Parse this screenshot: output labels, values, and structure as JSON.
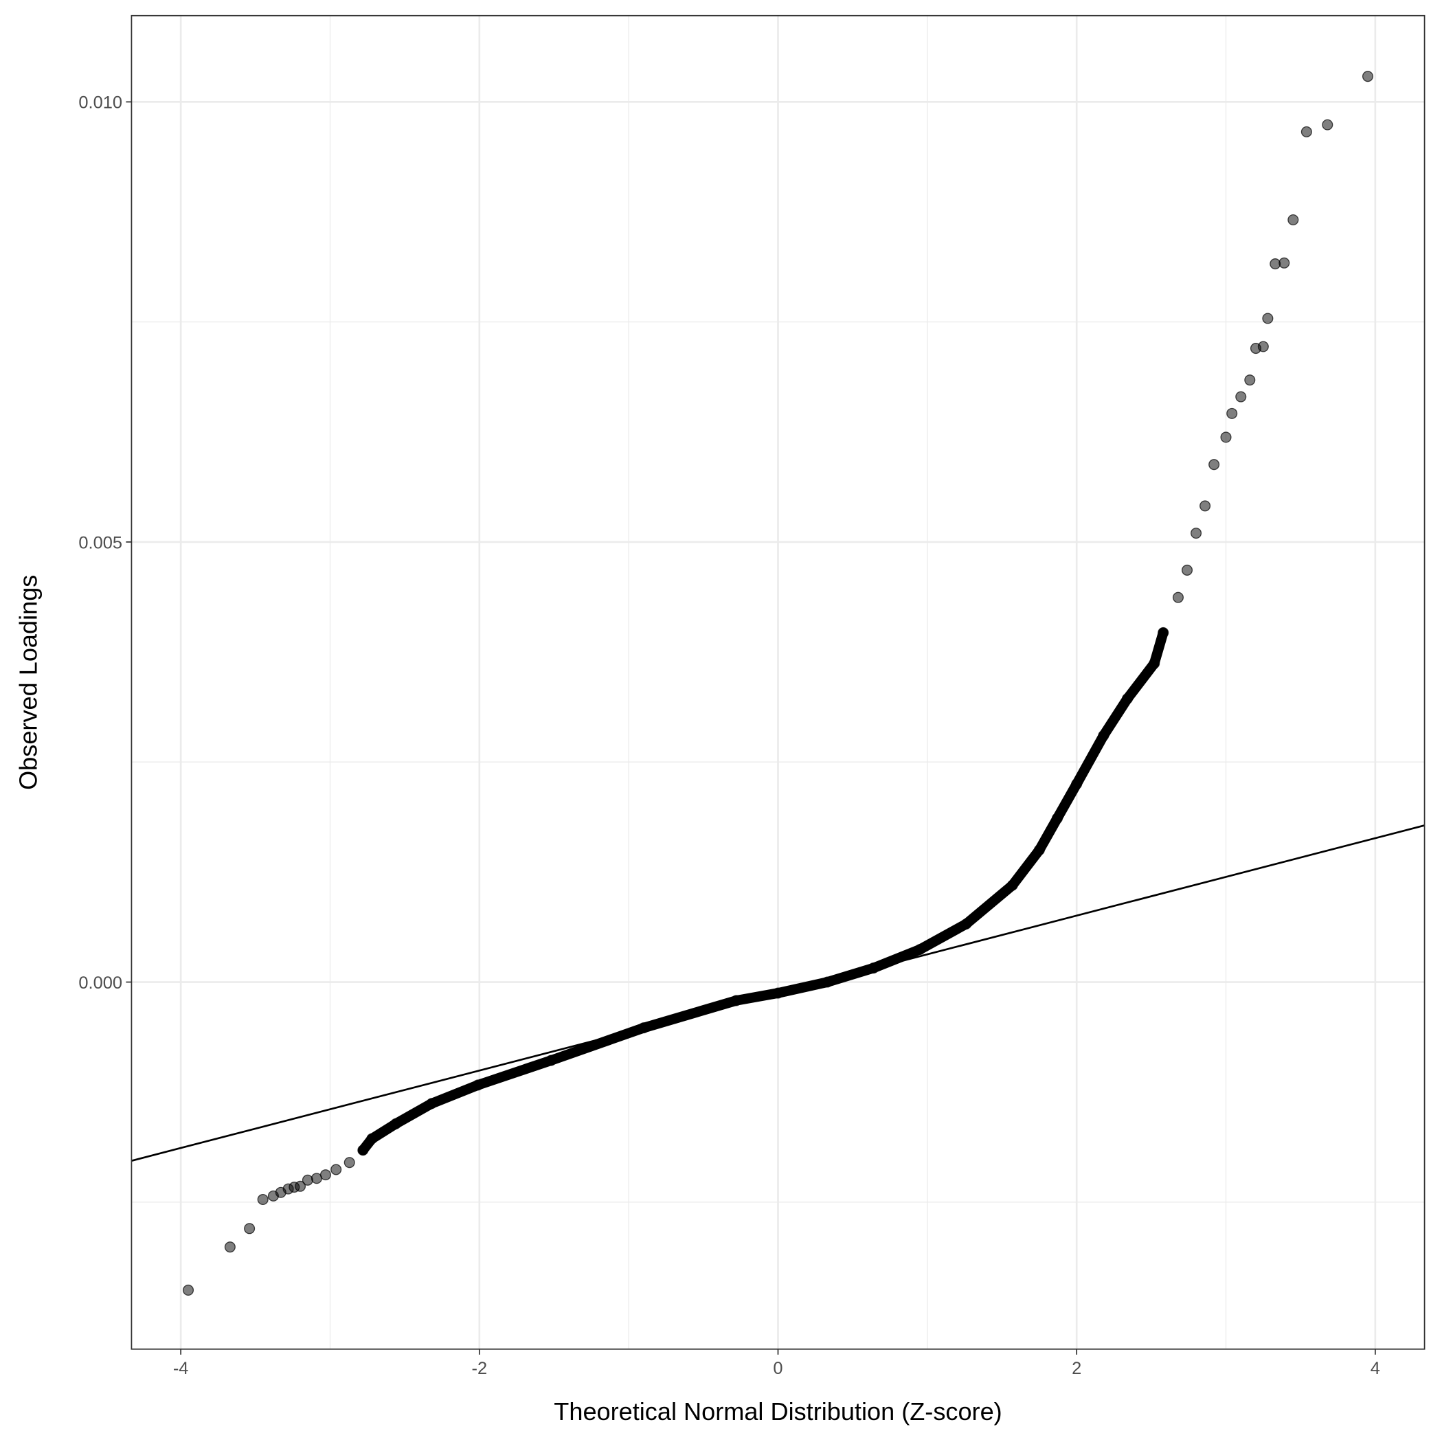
{
  "chart_data": {
    "type": "scatter",
    "title": "",
    "xlabel": "Theoretical Normal Distribution (Z-score)",
    "ylabel": "Observed Loadings",
    "xlim": [
      -4.33,
      4.33
    ],
    "ylim": [
      -0.00417,
      0.01098
    ],
    "x_ticks": [
      -4,
      -2,
      0,
      2,
      4
    ],
    "x_tick_labels": [
      "-4",
      "-2",
      "0",
      "2",
      "4"
    ],
    "y_ticks": [
      0,
      0.005,
      0.01
    ],
    "y_tick_labels": [
      "0.000",
      "0.005",
      "0.010"
    ],
    "grid": true,
    "legend": "none",
    "point_color": "#000000",
    "point_opacity": 0.5,
    "reference_line": {
      "intercept": -0.000125,
      "slope": 0.00044,
      "color": "#000000"
    },
    "points": [
      [
        -3.95,
        -0.0035
      ],
      [
        -3.67,
        -0.00301
      ],
      [
        -3.54,
        -0.0028
      ],
      [
        -3.45,
        -0.00247
      ],
      [
        -3.38,
        -0.00243
      ],
      [
        -3.33,
        -0.00239
      ],
      [
        -3.28,
        -0.00235
      ],
      [
        -3.24,
        -0.00233
      ],
      [
        -3.2,
        -0.00232
      ],
      [
        -3.15,
        -0.00225
      ],
      [
        -3.09,
        -0.00223
      ],
      [
        -3.03,
        -0.00219
      ],
      [
        -2.96,
        -0.00213
      ],
      [
        -2.87,
        -0.00205
      ],
      [
        -2.78,
        -0.00191
      ],
      [
        -2.72,
        -0.00178
      ],
      [
        -2.56,
        -0.00161
      ],
      [
        -2.32,
        -0.00138
      ],
      [
        -2.01,
        -0.00117
      ],
      [
        -1.52,
        -0.00089
      ],
      [
        -0.9,
        -0.00052
      ],
      [
        -0.28,
        -0.00021
      ],
      [
        0,
        -0.000125
      ],
      [
        0.33,
        0
      ],
      [
        0.64,
        0.00016
      ],
      [
        0.95,
        0.00037
      ],
      [
        1.26,
        0.00066
      ],
      [
        1.57,
        0.0011
      ],
      [
        1.75,
        0.0015
      ],
      [
        1.87,
        0.00186
      ],
      [
        2.0,
        0.00225
      ],
      [
        2.18,
        0.0028
      ],
      [
        2.34,
        0.00322
      ],
      [
        2.52,
        0.00362
      ],
      [
        2.58,
        0.00397
      ],
      [
        2.68,
        0.00437
      ],
      [
        2.74,
        0.00468
      ],
      [
        2.8,
        0.0051
      ],
      [
        2.86,
        0.00541
      ],
      [
        2.92,
        0.00588
      ],
      [
        3.0,
        0.00619
      ],
      [
        3.04,
        0.00646
      ],
      [
        3.1,
        0.00665
      ],
      [
        3.16,
        0.00684
      ],
      [
        3.2,
        0.0072
      ],
      [
        3.25,
        0.00722
      ],
      [
        3.28,
        0.00754
      ],
      [
        3.33,
        0.00816
      ],
      [
        3.39,
        0.00817
      ],
      [
        3.45,
        0.00866
      ],
      [
        3.54,
        0.00966
      ],
      [
        3.68,
        0.00974
      ],
      [
        3.95,
        0.01029
      ]
    ]
  }
}
